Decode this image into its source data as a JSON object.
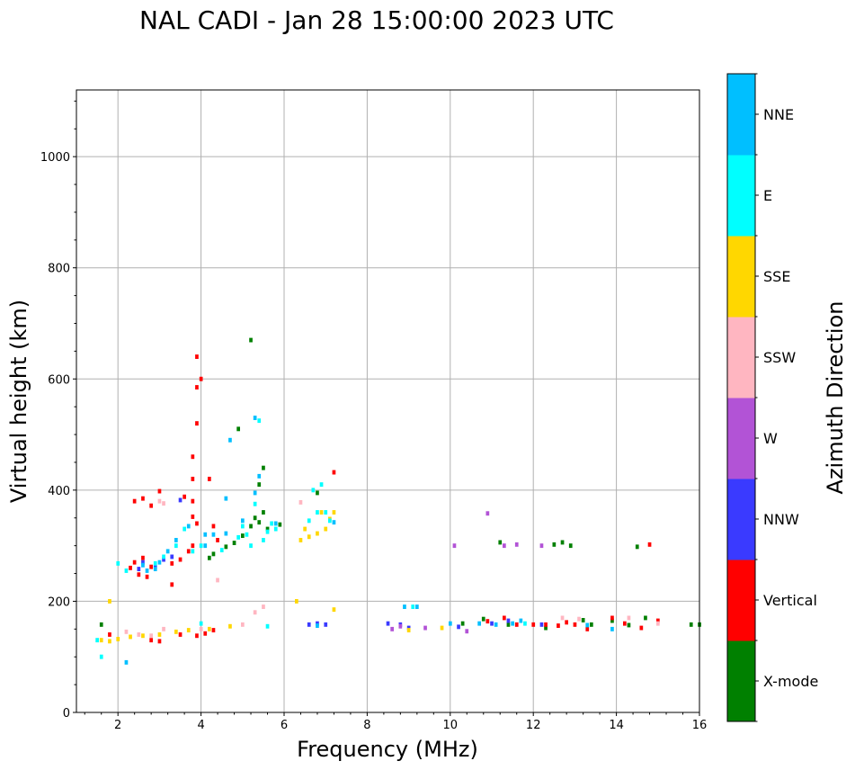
{
  "chart_data": {
    "type": "scatter",
    "title": "NAL CADI - Jan 28 15:00:00 2023 UTC",
    "xlabel": "Frequency (MHz)",
    "ylabel": "Virtual height (km)",
    "xlim": [
      1.0,
      16.0
    ],
    "ylim": [
      0,
      1120
    ],
    "x_ticks": [
      2,
      4,
      6,
      8,
      10,
      12,
      14,
      16
    ],
    "x_tick_labels": [
      "2",
      "4",
      "6",
      "8",
      "10",
      "12",
      "14",
      "16"
    ],
    "y_ticks": [
      0,
      200,
      400,
      600,
      800,
      1000
    ],
    "y_tick_labels": [
      "0",
      "200",
      "400",
      "600",
      "800",
      "1000"
    ],
    "grid": true,
    "colorbar": {
      "label": "Azimuth Direction",
      "categories": [
        {
          "name": "X-mode",
          "color": "#008000"
        },
        {
          "name": "Vertical",
          "color": "#ff0000"
        },
        {
          "name": "NNW",
          "color": "#3a3aff"
        },
        {
          "name": "W",
          "color": "#b253d6"
        },
        {
          "name": "SSW",
          "color": "#ffb6c1"
        },
        {
          "name": "SSE",
          "color": "#ffd700"
        },
        {
          "name": "E",
          "color": "#00ffff"
        },
        {
          "name": "NNE",
          "color": "#00bfff"
        }
      ]
    },
    "pixel_size": {
      "df": 0.08,
      "dh": 8
    },
    "series": [
      {
        "name": "X-mode",
        "points": [
          [
            4.2,
            278
          ],
          [
            4.3,
            285
          ],
          [
            4.6,
            298
          ],
          [
            4.8,
            305
          ],
          [
            5.0,
            318
          ],
          [
            5.2,
            335
          ],
          [
            5.3,
            350
          ],
          [
            5.4,
            342
          ],
          [
            5.5,
            360
          ],
          [
            5.6,
            330
          ],
          [
            5.4,
            410
          ],
          [
            5.5,
            440
          ],
          [
            5.2,
            670
          ],
          [
            4.9,
            510
          ],
          [
            5.9,
            338
          ],
          [
            6.8,
            395
          ],
          [
            10.3,
            160
          ],
          [
            10.8,
            168
          ],
          [
            11.4,
            158
          ],
          [
            12.3,
            152
          ],
          [
            12.5,
            302
          ],
          [
            12.7,
            306
          ],
          [
            12.9,
            300
          ],
          [
            13.2,
            166
          ],
          [
            13.4,
            158
          ],
          [
            13.9,
            165
          ],
          [
            14.3,
            157
          ],
          [
            14.5,
            298
          ],
          [
            14.7,
            170
          ],
          [
            15.8,
            158
          ],
          [
            16.0,
            158
          ],
          [
            1.6,
            158
          ],
          [
            11.2,
            306
          ]
        ]
      },
      {
        "name": "Vertical",
        "points": [
          [
            2.3,
            260
          ],
          [
            2.4,
            270
          ],
          [
            2.5,
            248
          ],
          [
            2.6,
            278
          ],
          [
            2.7,
            244
          ],
          [
            2.8,
            262
          ],
          [
            3.3,
            268
          ],
          [
            3.5,
            275
          ],
          [
            3.7,
            290
          ],
          [
            3.8,
            300
          ],
          [
            3.9,
            340
          ],
          [
            3.8,
            380
          ],
          [
            3.8,
            420
          ],
          [
            3.8,
            460
          ],
          [
            3.9,
            520
          ],
          [
            3.9,
            585
          ],
          [
            4.0,
            600
          ],
          [
            3.9,
            640
          ],
          [
            4.2,
            420
          ],
          [
            4.3,
            335
          ],
          [
            2.4,
            380
          ],
          [
            2.6,
            385
          ],
          [
            2.8,
            372
          ],
          [
            3.0,
            398
          ],
          [
            3.6,
            388
          ],
          [
            3.8,
            352
          ],
          [
            2.8,
            130
          ],
          [
            3.0,
            128
          ],
          [
            3.5,
            140
          ],
          [
            3.9,
            138
          ],
          [
            4.1,
            142
          ],
          [
            4.3,
            148
          ],
          [
            1.8,
            140
          ],
          [
            3.3,
            230
          ],
          [
            10.9,
            164
          ],
          [
            11.3,
            170
          ],
          [
            11.6,
            158
          ],
          [
            12.0,
            158
          ],
          [
            12.3,
            158
          ],
          [
            12.6,
            156
          ],
          [
            12.8,
            162
          ],
          [
            13.0,
            158
          ],
          [
            13.3,
            150
          ],
          [
            13.9,
            170
          ],
          [
            14.2,
            160
          ],
          [
            14.6,
            152
          ],
          [
            14.8,
            302
          ],
          [
            15.0,
            165
          ],
          [
            7.2,
            432
          ],
          [
            4.4,
            310
          ]
        ]
      },
      {
        "name": "NNW",
        "points": [
          [
            2.5,
            258
          ],
          [
            2.9,
            262
          ],
          [
            3.3,
            280
          ],
          [
            3.5,
            382
          ],
          [
            6.6,
            158
          ],
          [
            6.8,
            160
          ],
          [
            7.0,
            158
          ],
          [
            8.5,
            160
          ],
          [
            8.8,
            158
          ],
          [
            9.0,
            152
          ],
          [
            10.2,
            154
          ],
          [
            11.0,
            160
          ],
          [
            11.4,
            165
          ],
          [
            12.2,
            158
          ],
          [
            2.6,
            270
          ],
          [
            3.1,
            275
          ]
        ]
      },
      {
        "name": "W",
        "points": [
          [
            8.6,
            150
          ],
          [
            8.8,
            155
          ],
          [
            9.4,
            152
          ],
          [
            10.4,
            146
          ],
          [
            10.9,
            358
          ],
          [
            11.3,
            300
          ],
          [
            11.6,
            302
          ],
          [
            12.2,
            300
          ],
          [
            10.1,
            300
          ]
        ]
      },
      {
        "name": "SSW",
        "points": [
          [
            2.2,
            145
          ],
          [
            2.5,
            140
          ],
          [
            2.8,
            138
          ],
          [
            3.1,
            150
          ],
          [
            5.0,
            158
          ],
          [
            5.3,
            180
          ],
          [
            5.5,
            190
          ],
          [
            4.4,
            238
          ],
          [
            3.0,
            380
          ],
          [
            3.1,
            376
          ],
          [
            6.4,
            378
          ],
          [
            12.7,
            170
          ],
          [
            14.3,
            170
          ],
          [
            15.0,
            160
          ],
          [
            4.0,
            150
          ],
          [
            13.1,
            168
          ]
        ]
      },
      {
        "name": "SSE",
        "points": [
          [
            1.6,
            130
          ],
          [
            1.8,
            128
          ],
          [
            2.0,
            132
          ],
          [
            2.3,
            136
          ],
          [
            2.6,
            138
          ],
          [
            3.0,
            140
          ],
          [
            3.4,
            145
          ],
          [
            3.7,
            148
          ],
          [
            4.2,
            150
          ],
          [
            4.7,
            155
          ],
          [
            6.4,
            310
          ],
          [
            6.6,
            316
          ],
          [
            6.8,
            322
          ],
          [
            7.0,
            330
          ],
          [
            7.1,
            348
          ],
          [
            7.2,
            360
          ],
          [
            6.9,
            360
          ],
          [
            6.5,
            330
          ],
          [
            6.3,
            200
          ],
          [
            1.8,
            200
          ],
          [
            9.0,
            148
          ],
          [
            9.8,
            152
          ],
          [
            7.2,
            185
          ]
        ]
      },
      {
        "name": "E",
        "points": [
          [
            2.0,
            268
          ],
          [
            2.2,
            255
          ],
          [
            2.9,
            268
          ],
          [
            3.1,
            280
          ],
          [
            3.4,
            300
          ],
          [
            3.6,
            330
          ],
          [
            3.8,
            290
          ],
          [
            4.0,
            300
          ],
          [
            4.5,
            292
          ],
          [
            4.9,
            315
          ],
          [
            5.1,
            320
          ],
          [
            5.2,
            300
          ],
          [
            5.5,
            310
          ],
          [
            5.6,
            325
          ],
          [
            5.8,
            330
          ],
          [
            6.6,
            345
          ],
          [
            6.8,
            360
          ],
          [
            7.1,
            345
          ],
          [
            6.9,
            410
          ],
          [
            6.7,
            400
          ],
          [
            7.0,
            360
          ],
          [
            5.0,
            335
          ],
          [
            1.6,
            100
          ],
          [
            9.1,
            190
          ],
          [
            11.8,
            160
          ],
          [
            5.4,
            525
          ],
          [
            5.3,
            375
          ],
          [
            5.7,
            340
          ],
          [
            4.0,
            160
          ],
          [
            5.6,
            155
          ],
          [
            1.5,
            130
          ]
        ]
      },
      {
        "name": "NNE",
        "points": [
          [
            2.6,
            265
          ],
          [
            2.7,
            255
          ],
          [
            2.9,
            258
          ],
          [
            3.0,
            270
          ],
          [
            3.2,
            290
          ],
          [
            3.4,
            310
          ],
          [
            3.7,
            335
          ],
          [
            4.1,
            300
          ],
          [
            4.3,
            320
          ],
          [
            4.6,
            322
          ],
          [
            4.7,
            490
          ],
          [
            5.0,
            345
          ],
          [
            5.3,
            395
          ],
          [
            5.4,
            425
          ],
          [
            5.8,
            340
          ],
          [
            7.2,
            342
          ],
          [
            6.8,
            156
          ],
          [
            8.9,
            190
          ],
          [
            9.2,
            190
          ],
          [
            10.0,
            160
          ],
          [
            10.7,
            160
          ],
          [
            11.1,
            158
          ],
          [
            11.5,
            160
          ],
          [
            11.7,
            165
          ],
          [
            13.3,
            157
          ],
          [
            13.9,
            150
          ],
          [
            5.3,
            530
          ],
          [
            4.6,
            385
          ],
          [
            4.1,
            320
          ],
          [
            2.2,
            90
          ]
        ]
      }
    ]
  }
}
